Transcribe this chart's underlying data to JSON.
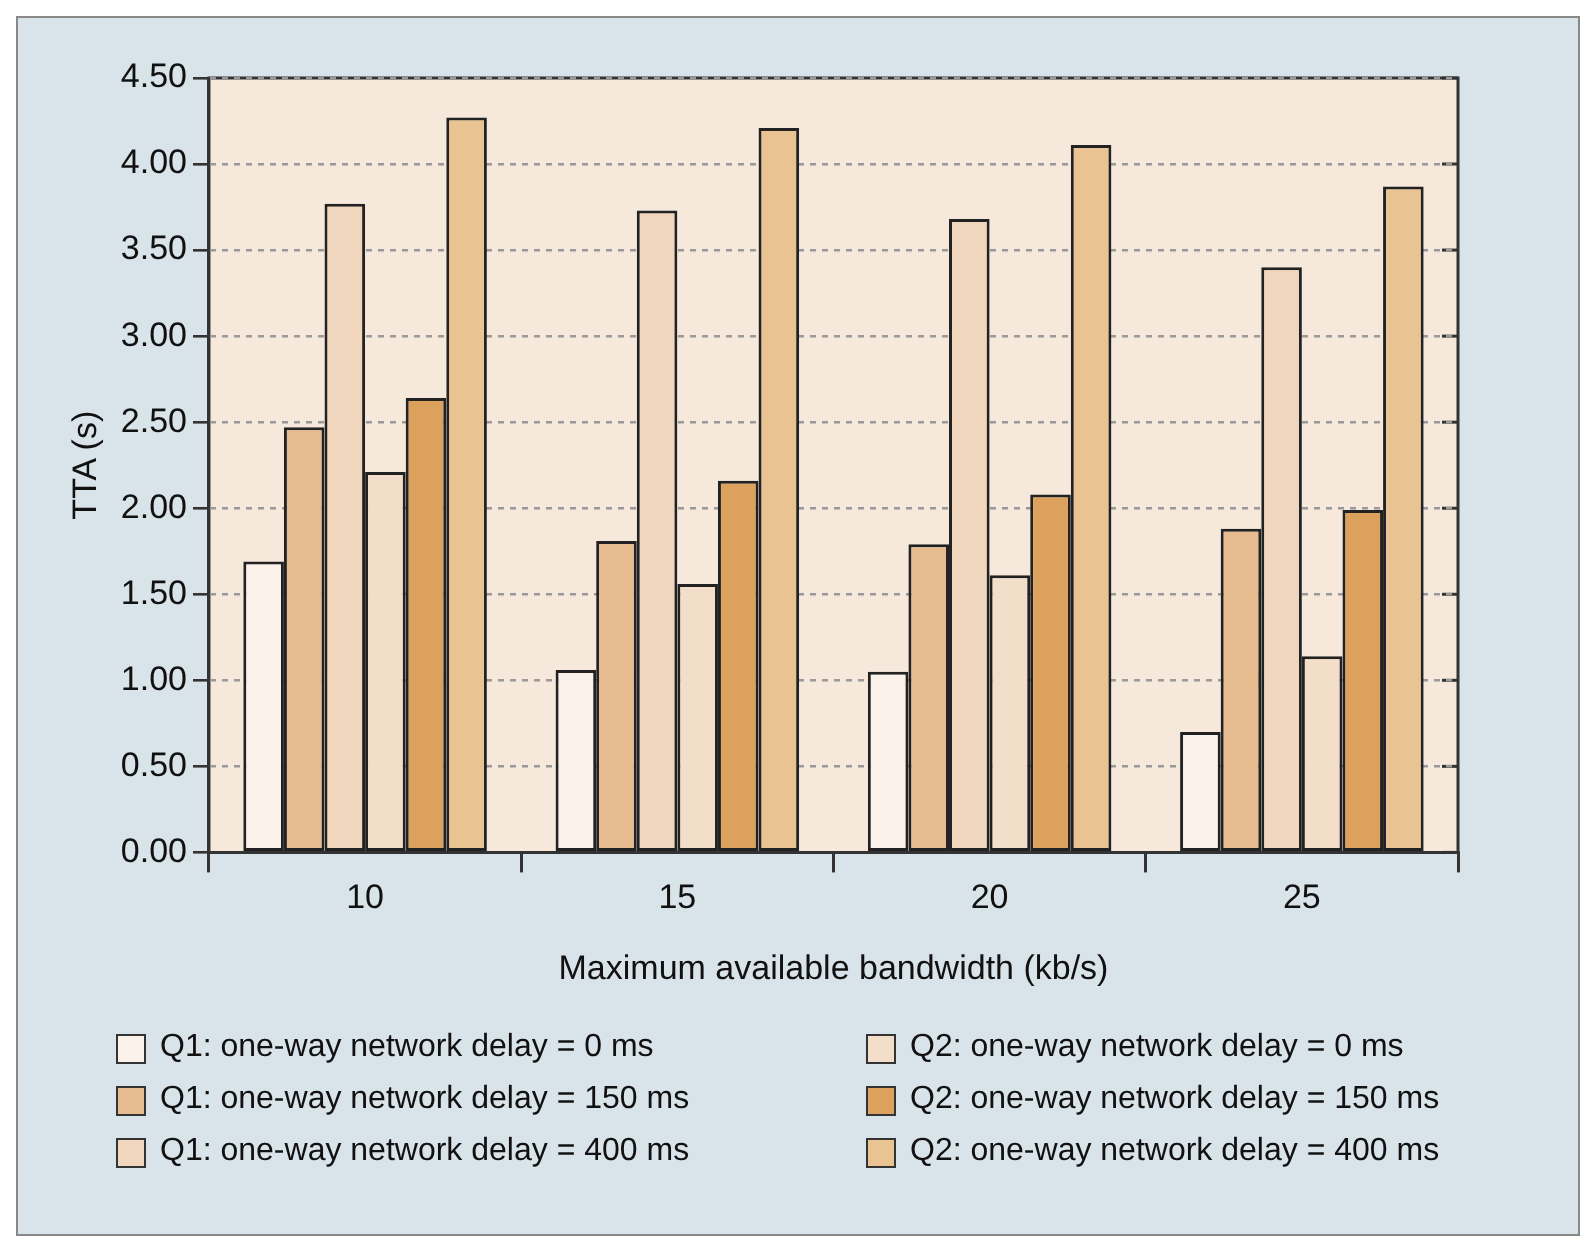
{
  "chart_data": {
    "type": "bar",
    "xlabel": "Maximum available bandwidth (kb/s)",
    "ylabel": "TTA (s)",
    "categories": [
      "10",
      "15",
      "20",
      "25"
    ],
    "series": [
      {
        "name": "Q1: one-way network delay = 0 ms",
        "color": "#faf1ea",
        "values": [
          1.69,
          1.06,
          1.05,
          0.7
        ]
      },
      {
        "name": "Q1: one-way network delay = 150 ms",
        "color": "#e6bb8f",
        "values": [
          2.47,
          1.81,
          1.79,
          1.88
        ]
      },
      {
        "name": "Q1: one-way network delay = 400 ms",
        "color": "#f0d6bc",
        "values": [
          3.77,
          3.73,
          3.68,
          3.4
        ]
      },
      {
        "name": "Q2: one-way network delay = 0 ms",
        "color": "#f3dfc9",
        "values": [
          2.21,
          1.56,
          1.61,
          1.14
        ]
      },
      {
        "name": "Q2: one-way network delay = 150 ms",
        "color": "#dca15d",
        "values": [
          2.64,
          2.16,
          2.08,
          1.99
        ]
      },
      {
        "name": "Q2: one-way network delay = 400 ms",
        "color": "#e9c492",
        "values": [
          4.27,
          4.21,
          4.11,
          3.87
        ]
      }
    ],
    "ylim": [
      0,
      4.5
    ],
    "yticks": [
      {
        "value": 0,
        "label": "0.00"
      },
      {
        "value": 0.5,
        "label": "0.50"
      },
      {
        "value": 1,
        "label": "1.00"
      },
      {
        "value": 1.5,
        "label": "1.50"
      },
      {
        "value": 2,
        "label": "2.00"
      },
      {
        "value": 2.5,
        "label": "2.50"
      },
      {
        "value": 3,
        "label": "3.00"
      },
      {
        "value": 3.5,
        "label": "3.50"
      },
      {
        "value": 4,
        "label": "4.00"
      },
      {
        "value": 4.5,
        "label": "4.50"
      }
    ],
    "grid": "y",
    "legend": "bottom"
  }
}
